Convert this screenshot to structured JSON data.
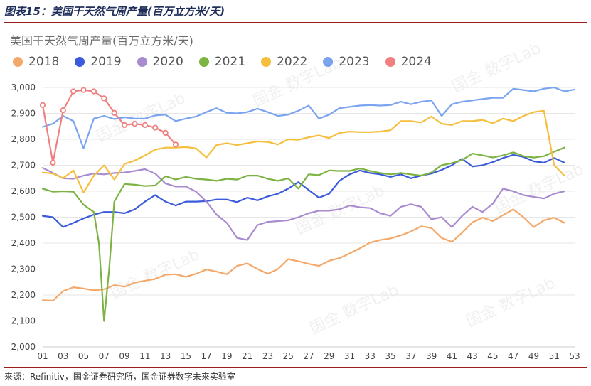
{
  "figure_title": "图表15：美国干天然气周产量(百万立方米/天)",
  "source": "来源：Refinitiv，国金证券研究所，国金证券数字未来实验室",
  "watermark": "国金 数字Lab",
  "chart_data": {
    "type": "line",
    "title": "美国干天然气周产量(百万立方米/天)",
    "xlabel": "",
    "ylabel": "",
    "ylim": [
      2000,
      3000
    ],
    "yticks": [
      "2,000",
      "2,100",
      "2,200",
      "2,300",
      "2,400",
      "2,500",
      "2,600",
      "2,700",
      "2,800",
      "2,900",
      "3,000"
    ],
    "xticks": [
      "01",
      "03",
      "05",
      "07",
      "09",
      "11",
      "13",
      "15",
      "17",
      "19",
      "21",
      "23",
      "25",
      "27",
      "29",
      "31",
      "33",
      "35",
      "37",
      "39",
      "41",
      "43",
      "45",
      "47",
      "49",
      "51",
      "53"
    ],
    "xlim": [
      1,
      53
    ],
    "grid": "horizontal",
    "legend_position": "top-left",
    "series": [
      {
        "name": "2018",
        "color": "#f4a86a",
        "marker": false,
        "x": [
          1,
          2,
          3,
          4,
          5,
          6,
          7,
          8,
          9,
          10,
          11,
          12,
          13,
          14,
          15,
          16,
          17,
          18,
          19,
          20,
          21,
          22,
          23,
          24,
          25,
          26,
          27,
          28,
          29,
          30,
          31,
          32,
          33,
          34,
          35,
          36,
          37,
          38,
          39,
          40,
          41,
          42,
          43,
          44,
          45,
          46,
          47,
          48,
          49,
          50,
          51,
          52
        ],
        "y": [
          2180,
          2178,
          2215,
          2230,
          2225,
          2218,
          2222,
          2238,
          2232,
          2248,
          2255,
          2262,
          2278,
          2280,
          2270,
          2282,
          2298,
          2290,
          2280,
          2312,
          2322,
          2300,
          2282,
          2300,
          2338,
          2330,
          2320,
          2312,
          2332,
          2342,
          2360,
          2380,
          2402,
          2412,
          2418,
          2430,
          2445,
          2465,
          2458,
          2420,
          2405,
          2440,
          2480,
          2498,
          2485,
          2508,
          2530,
          2500,
          2462,
          2488,
          2498,
          2478
        ]
      },
      {
        "name": "2019",
        "color": "#3b5bdb",
        "marker": false,
        "x": [
          1,
          2,
          3,
          4,
          5,
          6,
          7,
          8,
          9,
          10,
          11,
          12,
          13,
          14,
          15,
          16,
          17,
          18,
          19,
          20,
          21,
          22,
          23,
          24,
          25,
          26,
          27,
          28,
          29,
          30,
          31,
          32,
          33,
          34,
          35,
          36,
          37,
          38,
          39,
          40,
          41,
          42,
          43,
          44,
          45,
          46,
          47,
          48,
          49,
          50,
          51,
          52
        ],
        "y": [
          2505,
          2500,
          2462,
          2478,
          2495,
          2510,
          2520,
          2520,
          2515,
          2530,
          2560,
          2585,
          2560,
          2545,
          2560,
          2560,
          2562,
          2568,
          2568,
          2558,
          2575,
          2565,
          2580,
          2590,
          2610,
          2635,
          2605,
          2575,
          2590,
          2640,
          2665,
          2680,
          2670,
          2665,
          2655,
          2665,
          2650,
          2660,
          2668,
          2682,
          2700,
          2725,
          2695,
          2700,
          2712,
          2728,
          2740,
          2732,
          2715,
          2710,
          2728,
          2710
        ]
      },
      {
        "name": "2020",
        "color": "#a98bcf",
        "marker": false,
        "x": [
          1,
          2,
          3,
          4,
          5,
          6,
          7,
          8,
          9,
          10,
          11,
          12,
          13,
          14,
          15,
          16,
          17,
          18,
          19,
          20,
          21,
          22,
          23,
          24,
          25,
          26,
          27,
          28,
          29,
          30,
          31,
          32,
          33,
          34,
          35,
          36,
          37,
          38,
          39,
          40,
          41,
          42,
          43,
          44,
          45,
          46,
          47,
          48,
          49,
          50,
          51,
          52
        ],
        "y": [
          2690,
          2670,
          2650,
          2648,
          2660,
          2668,
          2665,
          2670,
          2672,
          2678,
          2685,
          2668,
          2630,
          2618,
          2618,
          2598,
          2560,
          2510,
          2478,
          2420,
          2412,
          2470,
          2482,
          2485,
          2488,
          2500,
          2515,
          2525,
          2525,
          2530,
          2545,
          2538,
          2535,
          2515,
          2505,
          2540,
          2550,
          2540,
          2492,
          2500,
          2462,
          2505,
          2540,
          2520,
          2552,
          2610,
          2600,
          2585,
          2578,
          2572,
          2590,
          2600
        ]
      },
      {
        "name": "2021",
        "color": "#7cb342",
        "marker": false,
        "x": [
          1,
          2,
          3,
          4,
          5,
          6,
          6.5,
          7,
          7.5,
          8,
          9,
          10,
          11,
          12,
          13,
          14,
          15,
          16,
          17,
          18,
          19,
          20,
          21,
          22,
          23,
          24,
          25,
          26,
          27,
          28,
          29,
          30,
          31,
          32,
          33,
          34,
          35,
          36,
          37,
          38,
          39,
          40,
          41,
          42,
          43,
          44,
          45,
          46,
          47,
          48,
          49,
          50,
          51,
          52
        ],
        "y": [
          2610,
          2598,
          2600,
          2598,
          2548,
          2520,
          2400,
          2100,
          2300,
          2560,
          2628,
          2625,
          2620,
          2622,
          2658,
          2645,
          2655,
          2648,
          2645,
          2640,
          2648,
          2645,
          2660,
          2660,
          2648,
          2640,
          2650,
          2610,
          2665,
          2662,
          2680,
          2678,
          2678,
          2688,
          2678,
          2670,
          2665,
          2670,
          2665,
          2660,
          2672,
          2700,
          2708,
          2720,
          2745,
          2738,
          2730,
          2738,
          2750,
          2735,
          2730,
          2735,
          2752,
          2768
        ]
      },
      {
        "name": "2022",
        "color": "#f5be3c",
        "marker": false,
        "x": [
          1,
          2,
          3,
          4,
          5,
          6,
          7,
          8,
          9,
          10,
          11,
          12,
          13,
          14,
          15,
          16,
          17,
          18,
          19,
          20,
          21,
          22,
          23,
          24,
          25,
          26,
          27,
          28,
          29,
          30,
          31,
          32,
          33,
          34,
          35,
          36,
          37,
          38,
          39,
          40,
          41,
          42,
          43,
          44,
          45,
          46,
          47,
          48,
          49,
          50,
          51,
          52
        ],
        "y": [
          2672,
          2668,
          2650,
          2680,
          2595,
          2660,
          2700,
          2645,
          2705,
          2718,
          2738,
          2760,
          2768,
          2768,
          2770,
          2765,
          2730,
          2778,
          2785,
          2778,
          2785,
          2792,
          2790,
          2780,
          2800,
          2798,
          2808,
          2815,
          2805,
          2825,
          2830,
          2828,
          2828,
          2830,
          2835,
          2870,
          2870,
          2865,
          2888,
          2860,
          2855,
          2870,
          2870,
          2875,
          2862,
          2880,
          2870,
          2890,
          2905,
          2910,
          2700,
          2660
        ]
      },
      {
        "name": "2023",
        "color": "#7ba4f0",
        "marker": false,
        "x": [
          1,
          2,
          3,
          4,
          5,
          6,
          7,
          8,
          9,
          10,
          11,
          12,
          13,
          14,
          15,
          16,
          17,
          18,
          19,
          20,
          21,
          22,
          23,
          24,
          25,
          26,
          27,
          28,
          29,
          30,
          31,
          32,
          33,
          34,
          35,
          36,
          37,
          38,
          39,
          40,
          41,
          42,
          43,
          44,
          45,
          46,
          47,
          48,
          49,
          50,
          51,
          52,
          53
        ],
        "y": [
          2848,
          2860,
          2890,
          2870,
          2765,
          2880,
          2890,
          2878,
          2885,
          2880,
          2880,
          2892,
          2895,
          2870,
          2880,
          2888,
          2905,
          2920,
          2902,
          2900,
          2905,
          2918,
          2905,
          2890,
          2895,
          2910,
          2930,
          2880,
          2895,
          2920,
          2925,
          2930,
          2932,
          2930,
          2932,
          2945,
          2935,
          2945,
          2950,
          2890,
          2935,
          2945,
          2950,
          2955,
          2960,
          2960,
          2995,
          2990,
          2985,
          2995,
          3000,
          2985,
          2992
        ]
      },
      {
        "name": "2024",
        "color": "#f08080",
        "marker": true,
        "x": [
          1,
          2,
          3,
          4,
          5,
          6,
          7,
          8,
          9,
          10,
          11,
          12,
          13,
          14
        ],
        "y": [
          2932,
          2710,
          2912,
          2985,
          2990,
          2985,
          2958,
          2902,
          2855,
          2860,
          2855,
          2845,
          2825,
          2780
        ]
      }
    ]
  }
}
